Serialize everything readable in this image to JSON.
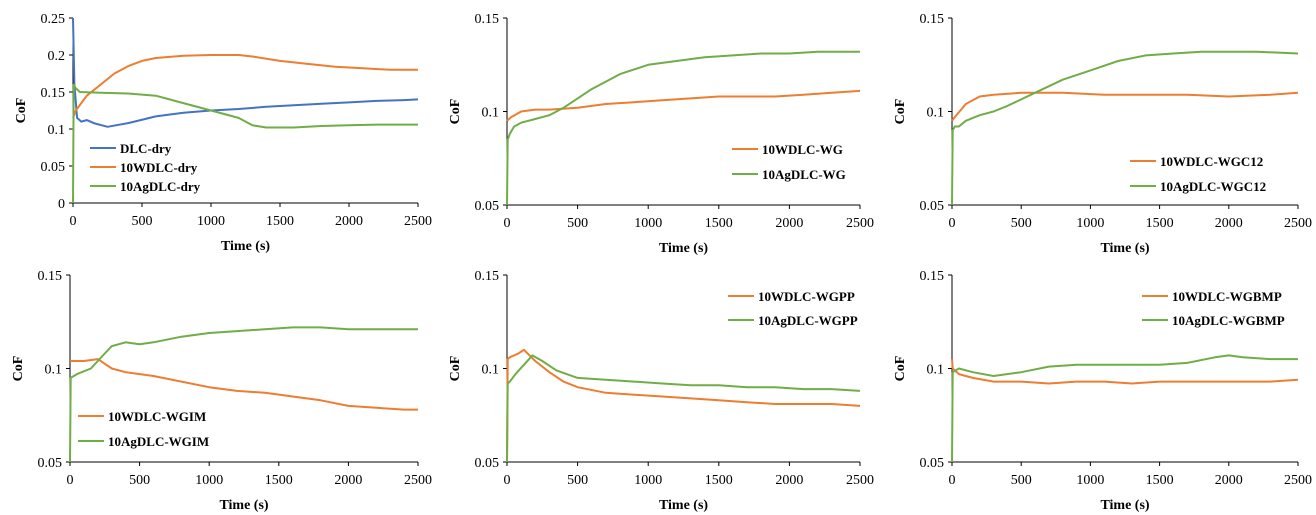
{
  "colors": {
    "blue": "#4472C4",
    "orange": "#ED7D31",
    "green": "#70AD47",
    "axis": "#000000"
  },
  "chart_data": [
    {
      "type": "line",
      "xlabel": "Time (s)",
      "ylabel": "CoF",
      "xlim": [
        0,
        2500
      ],
      "ylim": [
        0,
        0.25
      ],
      "xticks": [
        0,
        500,
        1000,
        1500,
        2000,
        2500
      ],
      "xtick_labels": [
        "0",
        "500",
        "1000",
        "1500",
        "2000",
        "2500"
      ],
      "yticks": [
        0,
        0.05,
        0.1,
        0.15,
        0.2,
        0.25
      ],
      "ytick_labels": [
        "0",
        "0.05",
        "0.1",
        "0.15",
        "0.2",
        "0.25"
      ],
      "legend_position": "bottom-left",
      "series": [
        {
          "name": "DLC-dry",
          "color": "#4472C4",
          "x": [
            0,
            10,
            30,
            60,
            100,
            150,
            250,
            400,
            600,
            800,
            1000,
            1200,
            1400,
            1600,
            1800,
            2000,
            2200,
            2400,
            2500
          ],
          "y": [
            0.25,
            0.16,
            0.115,
            0.11,
            0.112,
            0.108,
            0.103,
            0.108,
            0.117,
            0.122,
            0.125,
            0.127,
            0.13,
            0.132,
            0.134,
            0.136,
            0.138,
            0.139,
            0.14
          ]
        },
        {
          "name": "10WDLC-dry",
          "color": "#ED7D31",
          "x": [
            0,
            20,
            100,
            200,
            300,
            400,
            500,
            600,
            800,
            1000,
            1200,
            1300,
            1500,
            1700,
            1900,
            2100,
            2300,
            2500
          ],
          "y": [
            0.115,
            0.125,
            0.145,
            0.16,
            0.175,
            0.185,
            0.192,
            0.196,
            0.199,
            0.2,
            0.2,
            0.198,
            0.192,
            0.188,
            0.184,
            0.182,
            0.18,
            0.18
          ]
        },
        {
          "name": "10AgDLC-dry",
          "color": "#70AD47",
          "x": [
            0,
            5,
            20,
            50,
            200,
            400,
            600,
            800,
            1000,
            1200,
            1300,
            1400,
            1600,
            1800,
            2000,
            2200,
            2500
          ],
          "y": [
            0.0,
            0.16,
            0.155,
            0.15,
            0.149,
            0.148,
            0.145,
            0.135,
            0.125,
            0.115,
            0.105,
            0.102,
            0.102,
            0.104,
            0.105,
            0.106,
            0.106
          ]
        }
      ]
    },
    {
      "type": "line",
      "xlabel": "Time (s)",
      "ylabel": "CoF",
      "xlim": [
        0,
        2500
      ],
      "ylim": [
        0.05,
        0.15
      ],
      "xticks": [
        0,
        500,
        1000,
        1500,
        2000,
        2500
      ],
      "xtick_labels": [
        "0",
        "500",
        "1000",
        "1500",
        "2000",
        "2500"
      ],
      "yticks": [
        0.05,
        0.1,
        0.15
      ],
      "ytick_labels": [
        "0.05",
        "0.1",
        "0.15"
      ],
      "legend_position": "bottom-right",
      "series": [
        {
          "name": "10WDLC-WG",
          "color": "#ED7D31",
          "x": [
            0,
            30,
            100,
            200,
            300,
            500,
            700,
            900,
            1100,
            1300,
            1500,
            1700,
            1900,
            2100,
            2300,
            2500
          ],
          "y": [
            0.095,
            0.097,
            0.1,
            0.101,
            0.101,
            0.102,
            0.104,
            0.105,
            0.106,
            0.107,
            0.108,
            0.108,
            0.108,
            0.109,
            0.11,
            0.111
          ]
        },
        {
          "name": "10AgDLC-WG",
          "color": "#70AD47",
          "x": [
            0,
            5,
            20,
            50,
            100,
            200,
            300,
            400,
            500,
            600,
            800,
            1000,
            1200,
            1400,
            1600,
            1800,
            2000,
            2200,
            2500
          ],
          "y": [
            0.05,
            0.085,
            0.088,
            0.092,
            0.094,
            0.096,
            0.098,
            0.102,
            0.107,
            0.112,
            0.12,
            0.125,
            0.127,
            0.129,
            0.13,
            0.131,
            0.131,
            0.132,
            0.132
          ]
        }
      ]
    },
    {
      "type": "line",
      "xlabel": "Time (s)",
      "ylabel": "CoF",
      "xlim": [
        0,
        2500
      ],
      "ylim": [
        0.05,
        0.15
      ],
      "xticks": [
        0,
        500,
        1000,
        1500,
        2000,
        2500
      ],
      "xtick_labels": [
        "0",
        "500",
        "1000",
        "1500",
        "2000",
        "2500"
      ],
      "yticks": [
        0.05,
        0.1,
        0.15
      ],
      "ytick_labels": [
        "0.05",
        "0.1",
        "0.15"
      ],
      "legend_position": "bottom-right",
      "series": [
        {
          "name": "10WDLC-WGC12",
          "color": "#ED7D31",
          "x": [
            0,
            20,
            100,
            200,
            300,
            500,
            800,
            1100,
            1400,
            1700,
            2000,
            2300,
            2500
          ],
          "y": [
            0.095,
            0.097,
            0.104,
            0.108,
            0.109,
            0.11,
            0.11,
            0.109,
            0.109,
            0.109,
            0.108,
            0.109,
            0.11
          ]
        },
        {
          "name": "10AgDLC-WGC12",
          "color": "#70AD47",
          "x": [
            0,
            5,
            20,
            50,
            100,
            200,
            300,
            400,
            600,
            800,
            1000,
            1200,
            1400,
            1600,
            1800,
            2000,
            2200,
            2500
          ],
          "y": [
            0.05,
            0.09,
            0.092,
            0.092,
            0.095,
            0.098,
            0.1,
            0.103,
            0.11,
            0.117,
            0.122,
            0.127,
            0.13,
            0.131,
            0.132,
            0.132,
            0.132,
            0.131
          ]
        }
      ]
    },
    {
      "type": "line",
      "xlabel": "Time (s)",
      "ylabel": "CoF",
      "xlim": [
        0,
        2500
      ],
      "ylim": [
        0.05,
        0.15
      ],
      "xticks": [
        0,
        500,
        1000,
        1500,
        2000,
        2500
      ],
      "xtick_labels": [
        "0",
        "500",
        "1000",
        "1500",
        "2000",
        "2500"
      ],
      "yticks": [
        0.05,
        0.1,
        0.15
      ],
      "ytick_labels": [
        "0.05",
        "0.1",
        "0.15"
      ],
      "legend_position": "bottom-left",
      "series": [
        {
          "name": "10WDLC-WGIM",
          "color": "#ED7D31",
          "x": [
            0,
            10,
            100,
            200,
            300,
            400,
            600,
            800,
            1000,
            1200,
            1400,
            1600,
            1800,
            2000,
            2200,
            2400,
            2500
          ],
          "y": [
            0.104,
            0.104,
            0.104,
            0.105,
            0.1,
            0.098,
            0.096,
            0.093,
            0.09,
            0.088,
            0.087,
            0.085,
            0.083,
            0.08,
            0.079,
            0.078,
            0.078
          ]
        },
        {
          "name": "10AgDLC-WGIM",
          "color": "#70AD47",
          "x": [
            0,
            5,
            50,
            150,
            250,
            300,
            400,
            500,
            600,
            800,
            1000,
            1200,
            1400,
            1600,
            1800,
            2000,
            2200,
            2500
          ],
          "y": [
            0.05,
            0.095,
            0.097,
            0.1,
            0.108,
            0.112,
            0.114,
            0.113,
            0.114,
            0.117,
            0.119,
            0.12,
            0.121,
            0.122,
            0.122,
            0.121,
            0.121,
            0.121
          ]
        }
      ]
    },
    {
      "type": "line",
      "xlabel": "Time (s)",
      "ylabel": "CoF",
      "xlim": [
        0,
        2500
      ],
      "ylim": [
        0.05,
        0.15
      ],
      "xticks": [
        0,
        500,
        1000,
        1500,
        2000,
        2500
      ],
      "xtick_labels": [
        "0",
        "500",
        "1000",
        "1500",
        "2000",
        "2500"
      ],
      "yticks": [
        0.05,
        0.1,
        0.15
      ],
      "ytick_labels": [
        "0.05",
        "0.1",
        "0.15"
      ],
      "legend_position": "top-right",
      "series": [
        {
          "name": "10WDLC-WGPP",
          "color": "#ED7D31",
          "x": [
            0,
            5,
            20,
            80,
            120,
            200,
            300,
            400,
            500,
            700,
            900,
            1100,
            1300,
            1500,
            1700,
            1900,
            2100,
            2300,
            2500
          ],
          "y": [
            0.05,
            0.105,
            0.106,
            0.108,
            0.11,
            0.104,
            0.098,
            0.093,
            0.09,
            0.087,
            0.086,
            0.085,
            0.084,
            0.083,
            0.082,
            0.081,
            0.081,
            0.081,
            0.08
          ]
        },
        {
          "name": "10AgDLC-WGPP",
          "color": "#70AD47",
          "x": [
            0,
            5,
            20,
            60,
            120,
            180,
            250,
            350,
            500,
            700,
            900,
            1100,
            1300,
            1500,
            1700,
            1900,
            2100,
            2300,
            2500
          ],
          "y": [
            0.05,
            0.092,
            0.093,
            0.097,
            0.102,
            0.107,
            0.104,
            0.099,
            0.095,
            0.094,
            0.093,
            0.092,
            0.091,
            0.091,
            0.09,
            0.09,
            0.089,
            0.089,
            0.088
          ]
        }
      ]
    },
    {
      "type": "line",
      "xlabel": "Time (s)",
      "ylabel": "CoF",
      "xlim": [
        0,
        2500
      ],
      "ylim": [
        0.05,
        0.15
      ],
      "xticks": [
        0,
        500,
        1000,
        1500,
        2000,
        2500
      ],
      "xtick_labels": [
        "0",
        "500",
        "1000",
        "1500",
        "2000",
        "2500"
      ],
      "yticks": [
        0.05,
        0.1,
        0.15
      ],
      "ytick_labels": [
        "0.05",
        "0.1",
        "0.15"
      ],
      "legend_position": "top-right",
      "series": [
        {
          "name": "10WDLC-WGBMP",
          "color": "#ED7D31",
          "x": [
            0,
            5,
            50,
            150,
            300,
            500,
            700,
            900,
            1100,
            1300,
            1500,
            1700,
            1900,
            2100,
            2300,
            2500
          ],
          "y": [
            0.105,
            0.1,
            0.097,
            0.095,
            0.093,
            0.093,
            0.092,
            0.093,
            0.093,
            0.092,
            0.093,
            0.093,
            0.093,
            0.093,
            0.093,
            0.094
          ]
        },
        {
          "name": "10AgDLC-WGBMP",
          "color": "#70AD47",
          "x": [
            0,
            5,
            50,
            150,
            300,
            500,
            700,
            900,
            1100,
            1300,
            1500,
            1700,
            1900,
            2000,
            2100,
            2300,
            2500
          ],
          "y": [
            0.05,
            0.098,
            0.1,
            0.098,
            0.096,
            0.098,
            0.101,
            0.102,
            0.102,
            0.102,
            0.102,
            0.103,
            0.106,
            0.107,
            0.106,
            0.105,
            0.105
          ]
        }
      ]
    }
  ]
}
